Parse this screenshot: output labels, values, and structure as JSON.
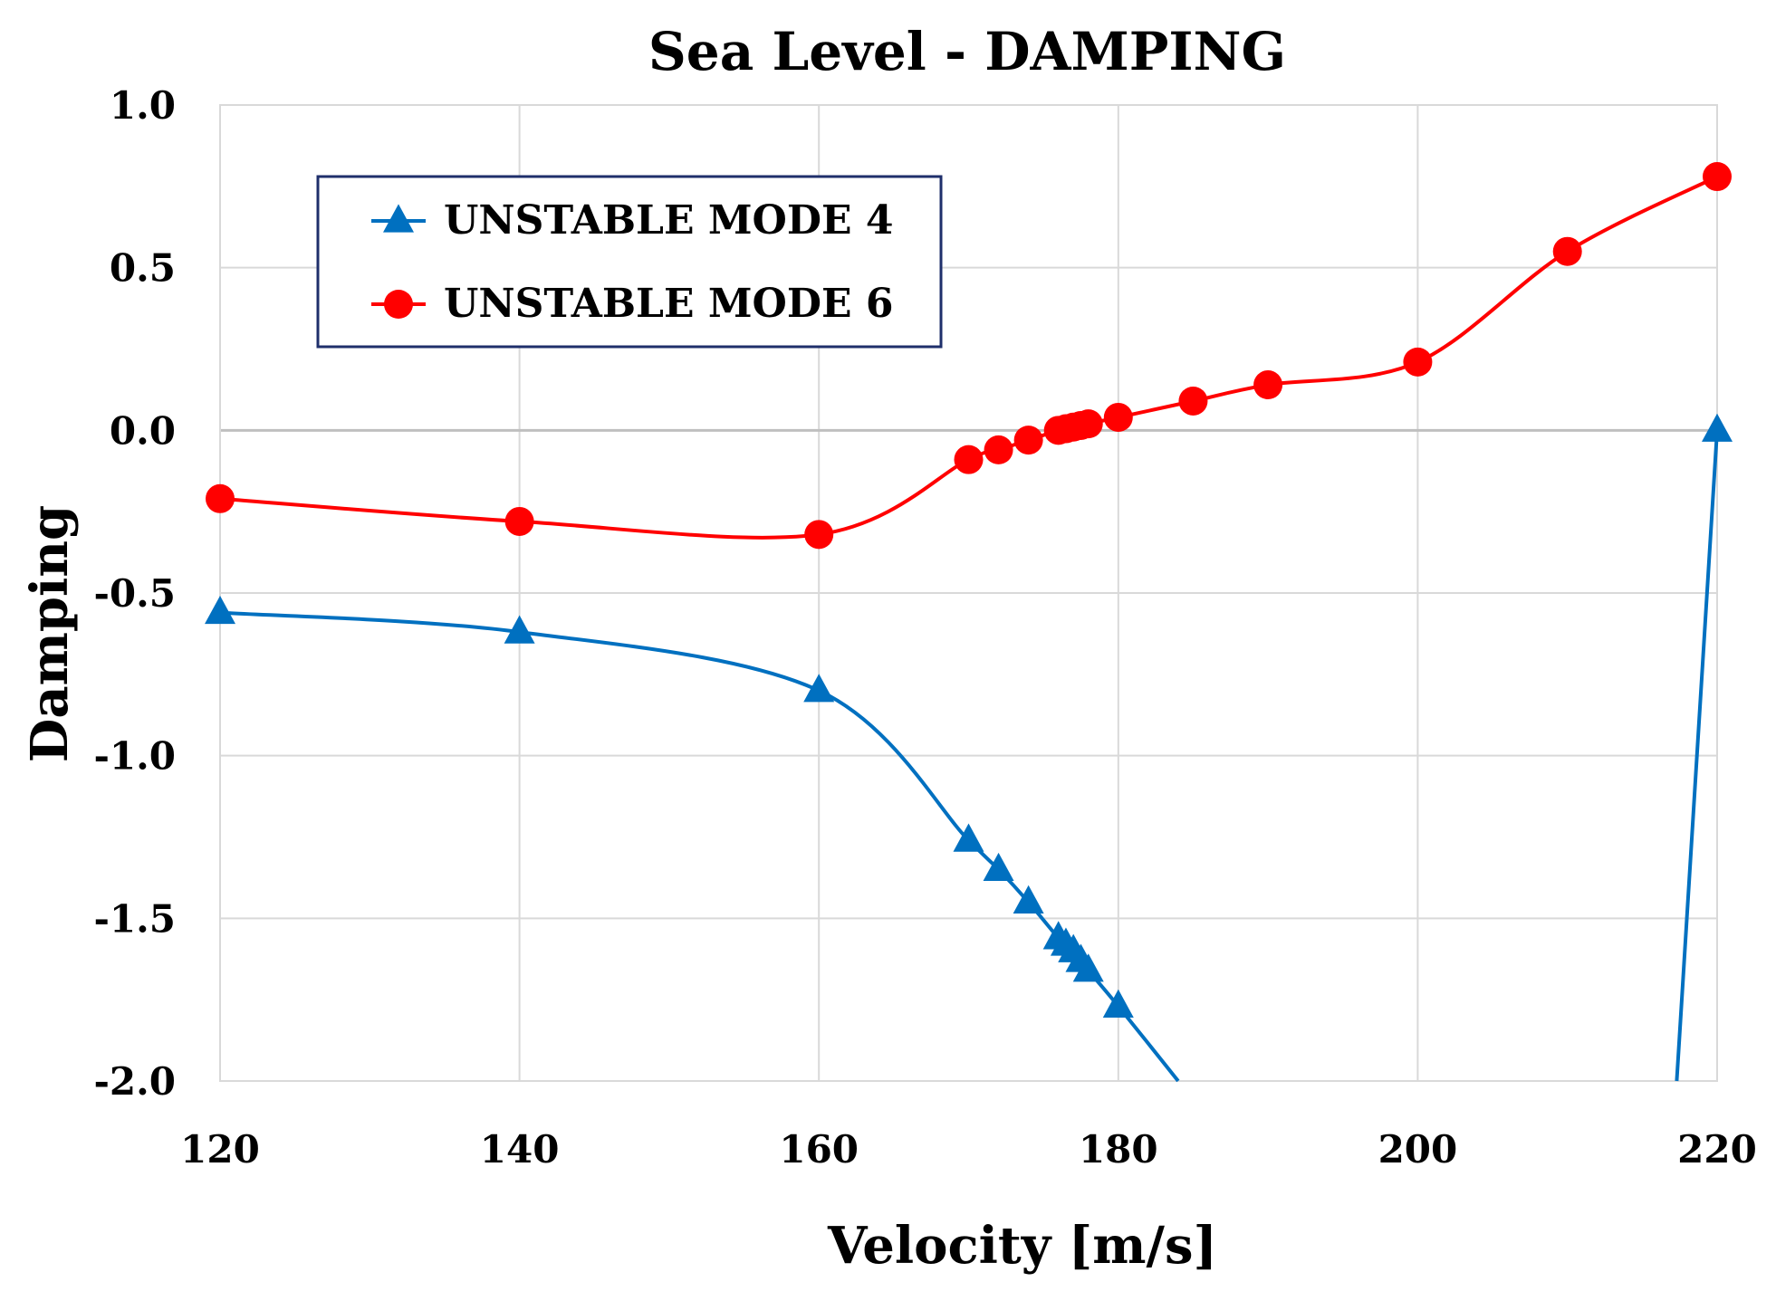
{
  "chart_data": {
    "type": "line",
    "title": "Sea Level - DAMPING",
    "xlabel": "Velocity [m/s]",
    "ylabel": "Damping",
    "xlim": [
      120,
      220
    ],
    "ylim": [
      -2.0,
      1.0
    ],
    "grid": true,
    "x_ticks": [
      120,
      140,
      160,
      180,
      200,
      220
    ],
    "x_tick_labels": [
      "120",
      "140",
      "160",
      "180",
      "200",
      "220"
    ],
    "y_ticks": [
      1.0,
      0.5,
      0.0,
      -0.5,
      -1.0,
      -1.5,
      -2.0
    ],
    "y_tick_labels": [
      "1.0",
      "0.5",
      "0.0",
      "-0.5",
      "-1.0",
      "-1.5",
      "-2.0"
    ],
    "legend_position": "top-left",
    "series": [
      {
        "name": "UNSTABLE MODE 4",
        "color": "#0070C0",
        "marker": "triangle",
        "points": [
          {
            "x": 120,
            "y": -0.56
          },
          {
            "x": 140,
            "y": -0.62
          },
          {
            "x": 160,
            "y": -0.8
          },
          {
            "x": 170,
            "y": -1.26
          },
          {
            "x": 172,
            "y": -1.35
          },
          {
            "x": 174,
            "y": -1.45
          },
          {
            "x": 176,
            "y": -1.56
          },
          {
            "x": 176.5,
            "y": -1.58
          },
          {
            "x": 177,
            "y": -1.6
          },
          {
            "x": 177.5,
            "y": -1.63
          },
          {
            "x": 178,
            "y": -1.66
          },
          {
            "x": 180,
            "y": -1.77
          },
          {
            "x": 220,
            "y": 0.0
          }
        ],
        "line_segments": [
          [
            [
              120,
              -0.56
            ],
            [
              140,
              -0.62
            ],
            [
              160,
              -0.8
            ],
            [
              170,
              -1.26
            ],
            [
              172,
              -1.35
            ],
            [
              174,
              -1.45
            ],
            [
              176,
              -1.56
            ],
            [
              177,
              -1.6
            ],
            [
              178,
              -1.66
            ],
            [
              180,
              -1.77
            ],
            [
              184,
              -2.0
            ]
          ],
          [
            [
              217.3,
              -2.0
            ],
            [
              220,
              0.0
            ]
          ]
        ]
      },
      {
        "name": "UNSTABLE MODE 6",
        "color": "#FF0000",
        "marker": "circle",
        "points": [
          {
            "x": 120,
            "y": -0.21
          },
          {
            "x": 140,
            "y": -0.28
          },
          {
            "x": 160,
            "y": -0.32
          },
          {
            "x": 170,
            "y": -0.09
          },
          {
            "x": 172,
            "y": -0.06
          },
          {
            "x": 174,
            "y": -0.03
          },
          {
            "x": 176,
            "y": 0.0
          },
          {
            "x": 176.5,
            "y": 0.005
          },
          {
            "x": 177,
            "y": 0.01
          },
          {
            "x": 177.5,
            "y": 0.015
          },
          {
            "x": 178,
            "y": 0.02
          },
          {
            "x": 180,
            "y": 0.04
          },
          {
            "x": 185,
            "y": 0.09
          },
          {
            "x": 190,
            "y": 0.14
          },
          {
            "x": 200,
            "y": 0.21
          },
          {
            "x": 210,
            "y": 0.55
          },
          {
            "x": 220,
            "y": 0.78
          }
        ]
      }
    ]
  }
}
